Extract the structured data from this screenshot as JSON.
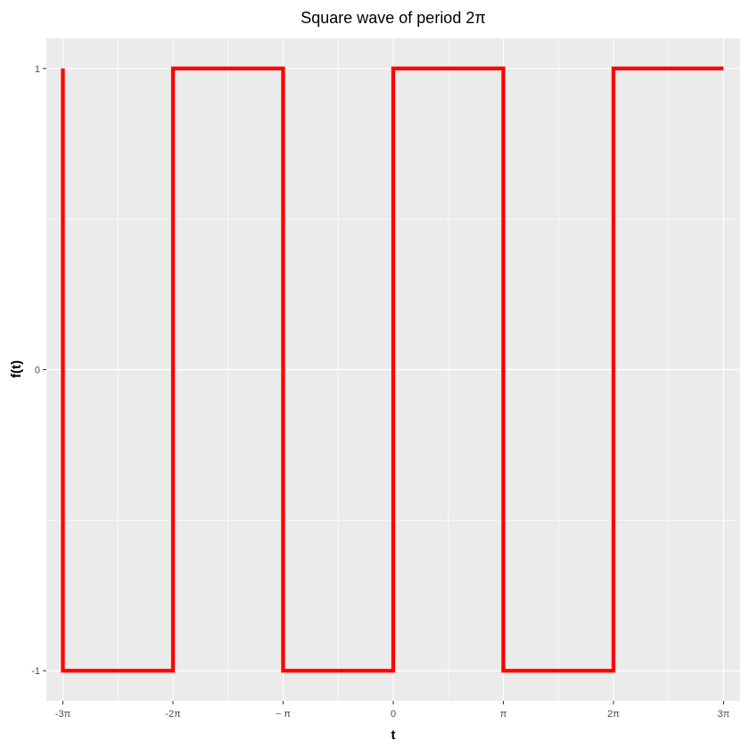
{
  "chart_data": {
    "type": "line",
    "title": "Square wave of period 2π",
    "xlabel": "t",
    "ylabel": "f(t)",
    "xlim": [
      -9.896,
      9.896
    ],
    "ylim": [
      -1.1,
      1.1
    ],
    "x_ticks": [
      {
        "value": -9.4248,
        "label": "-3π"
      },
      {
        "value": -6.2832,
        "label": "-2π"
      },
      {
        "value": -3.1416,
        "label": "− π"
      },
      {
        "value": 0,
        "label": "0"
      },
      {
        "value": 3.1416,
        "label": "π"
      },
      {
        "value": 6.2832,
        "label": "2π"
      },
      {
        "value": 9.4248,
        "label": "3π"
      }
    ],
    "y_ticks": [
      {
        "value": -1,
        "label": "-1"
      },
      {
        "value": 0,
        "label": "0"
      },
      {
        "value": 1,
        "label": "1"
      }
    ],
    "grid": true,
    "legend": "none",
    "colors": {
      "line": "#ff0000",
      "panel": "#ebebeb",
      "grid": "#ffffff"
    },
    "series": [
      {
        "x": [
          -9.4248,
          -9.4248,
          -9.4248,
          -9.4248,
          -6.2832,
          -6.2832,
          -3.1416,
          -3.1416,
          0,
          0,
          3.1416,
          3.1416,
          6.2832,
          6.2832,
          9.4248
        ],
        "y": [
          1,
          0,
          0,
          -1,
          -1,
          1,
          1,
          -1,
          -1,
          1,
          1,
          -1,
          -1,
          1,
          1
        ]
      }
    ]
  }
}
